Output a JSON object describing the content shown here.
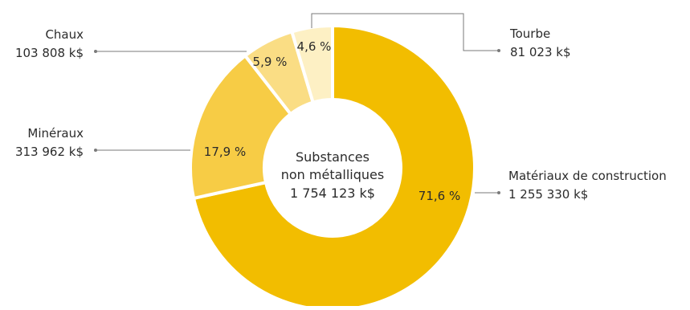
{
  "chart_data": {
    "type": "pie",
    "variant": "donut",
    "center_label": {
      "line1": "Substances",
      "line2": "non métalliques",
      "line3": "1 754 123 k$"
    },
    "total": 1754123,
    "unit": "k$",
    "slices": [
      {
        "name": "Matériaux de construction",
        "value": 1255330,
        "value_label": "1 255 330 k$",
        "percent": 71.6,
        "percent_label": "71,6 %",
        "color": "#f2bd00"
      },
      {
        "name": "Minéraux",
        "value": 313962,
        "value_label": "313 962 k$",
        "percent": 17.9,
        "percent_label": "17,9 %",
        "color": "#f7cc45"
      },
      {
        "name": "Chaux",
        "value": 103808,
        "value_label": "103 808 k$",
        "percent": 5.9,
        "percent_label": "5,9 %",
        "color": "#fadd84"
      },
      {
        "name": "Tourbe",
        "value": 81023,
        "value_label": "81 023 k$",
        "percent": 4.6,
        "percent_label": "4,6 %",
        "color": "#fdf0c4"
      }
    ],
    "leader_line_color": "#7a7a7a"
  }
}
